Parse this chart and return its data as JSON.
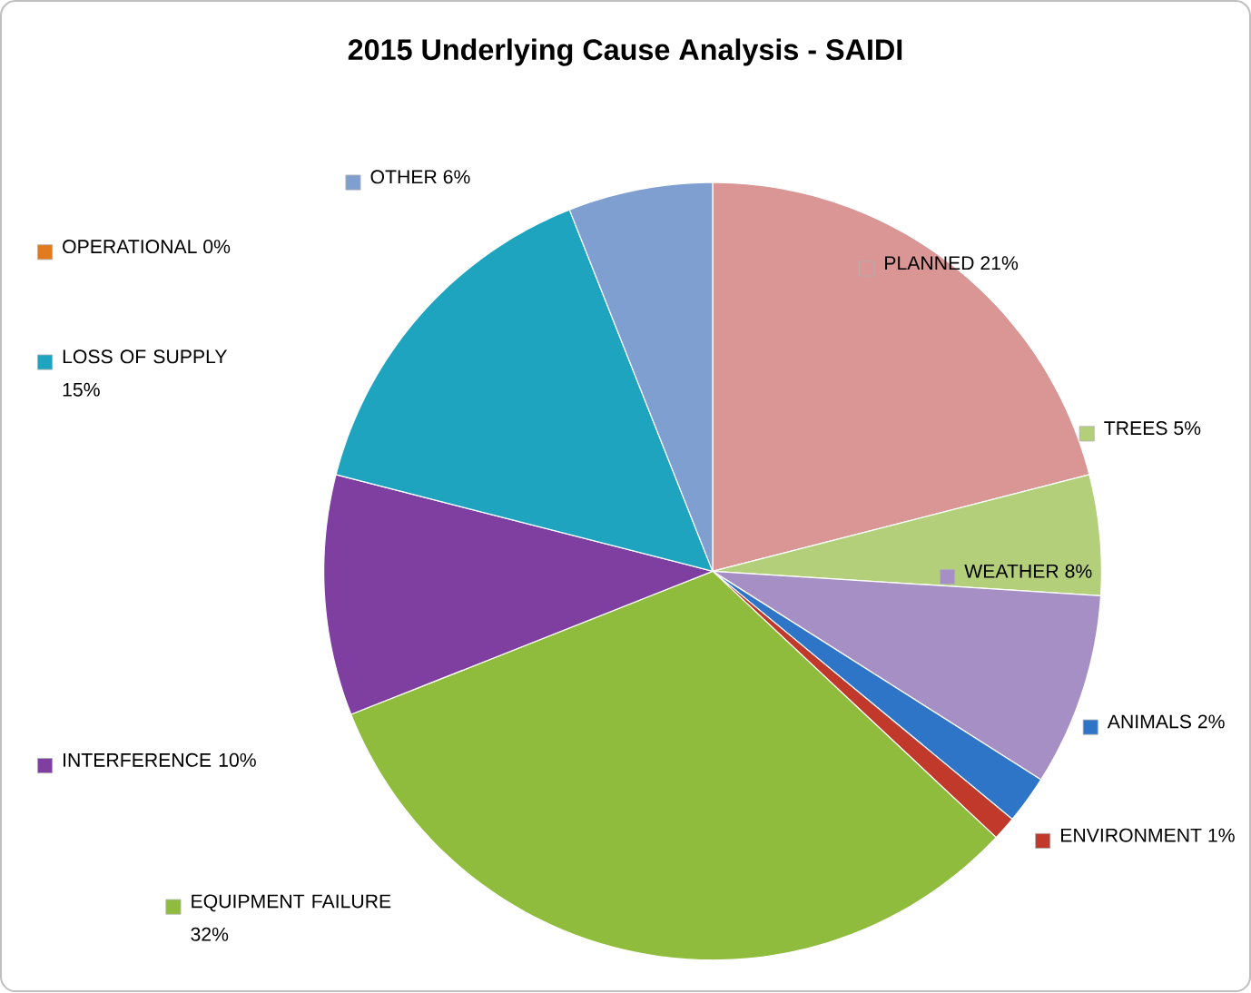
{
  "chart_data": {
    "type": "pie",
    "title": "2015 Underlying Cause Analysis - SAIDI",
    "categories": [
      "PLANNED",
      "TREES",
      "WEATHER",
      "ANIMALS",
      "ENVIRONMENT",
      "EQUIPMENT FAILURE",
      "INTERFERENCE",
      "LOSS OF SUPPLY",
      "OPERATIONAL",
      "OTHER"
    ],
    "values": [
      21,
      5,
      8,
      2,
      1,
      32,
      10,
      15,
      0,
      6
    ],
    "value_labels": [
      "21%",
      "5%",
      "8%",
      "2%",
      "1%",
      "32%",
      "10%",
      "15%",
      "0%",
      "6%"
    ],
    "colors": [
      "#d99694",
      "#b3cf7a",
      "#a68fc4",
      "#2e75c8",
      "#c0392b",
      "#8fbc3c",
      "#7f3fa0",
      "#1fa4c0",
      "#e07b20",
      "#7f9fd0"
    ],
    "legend": "top left"
  }
}
